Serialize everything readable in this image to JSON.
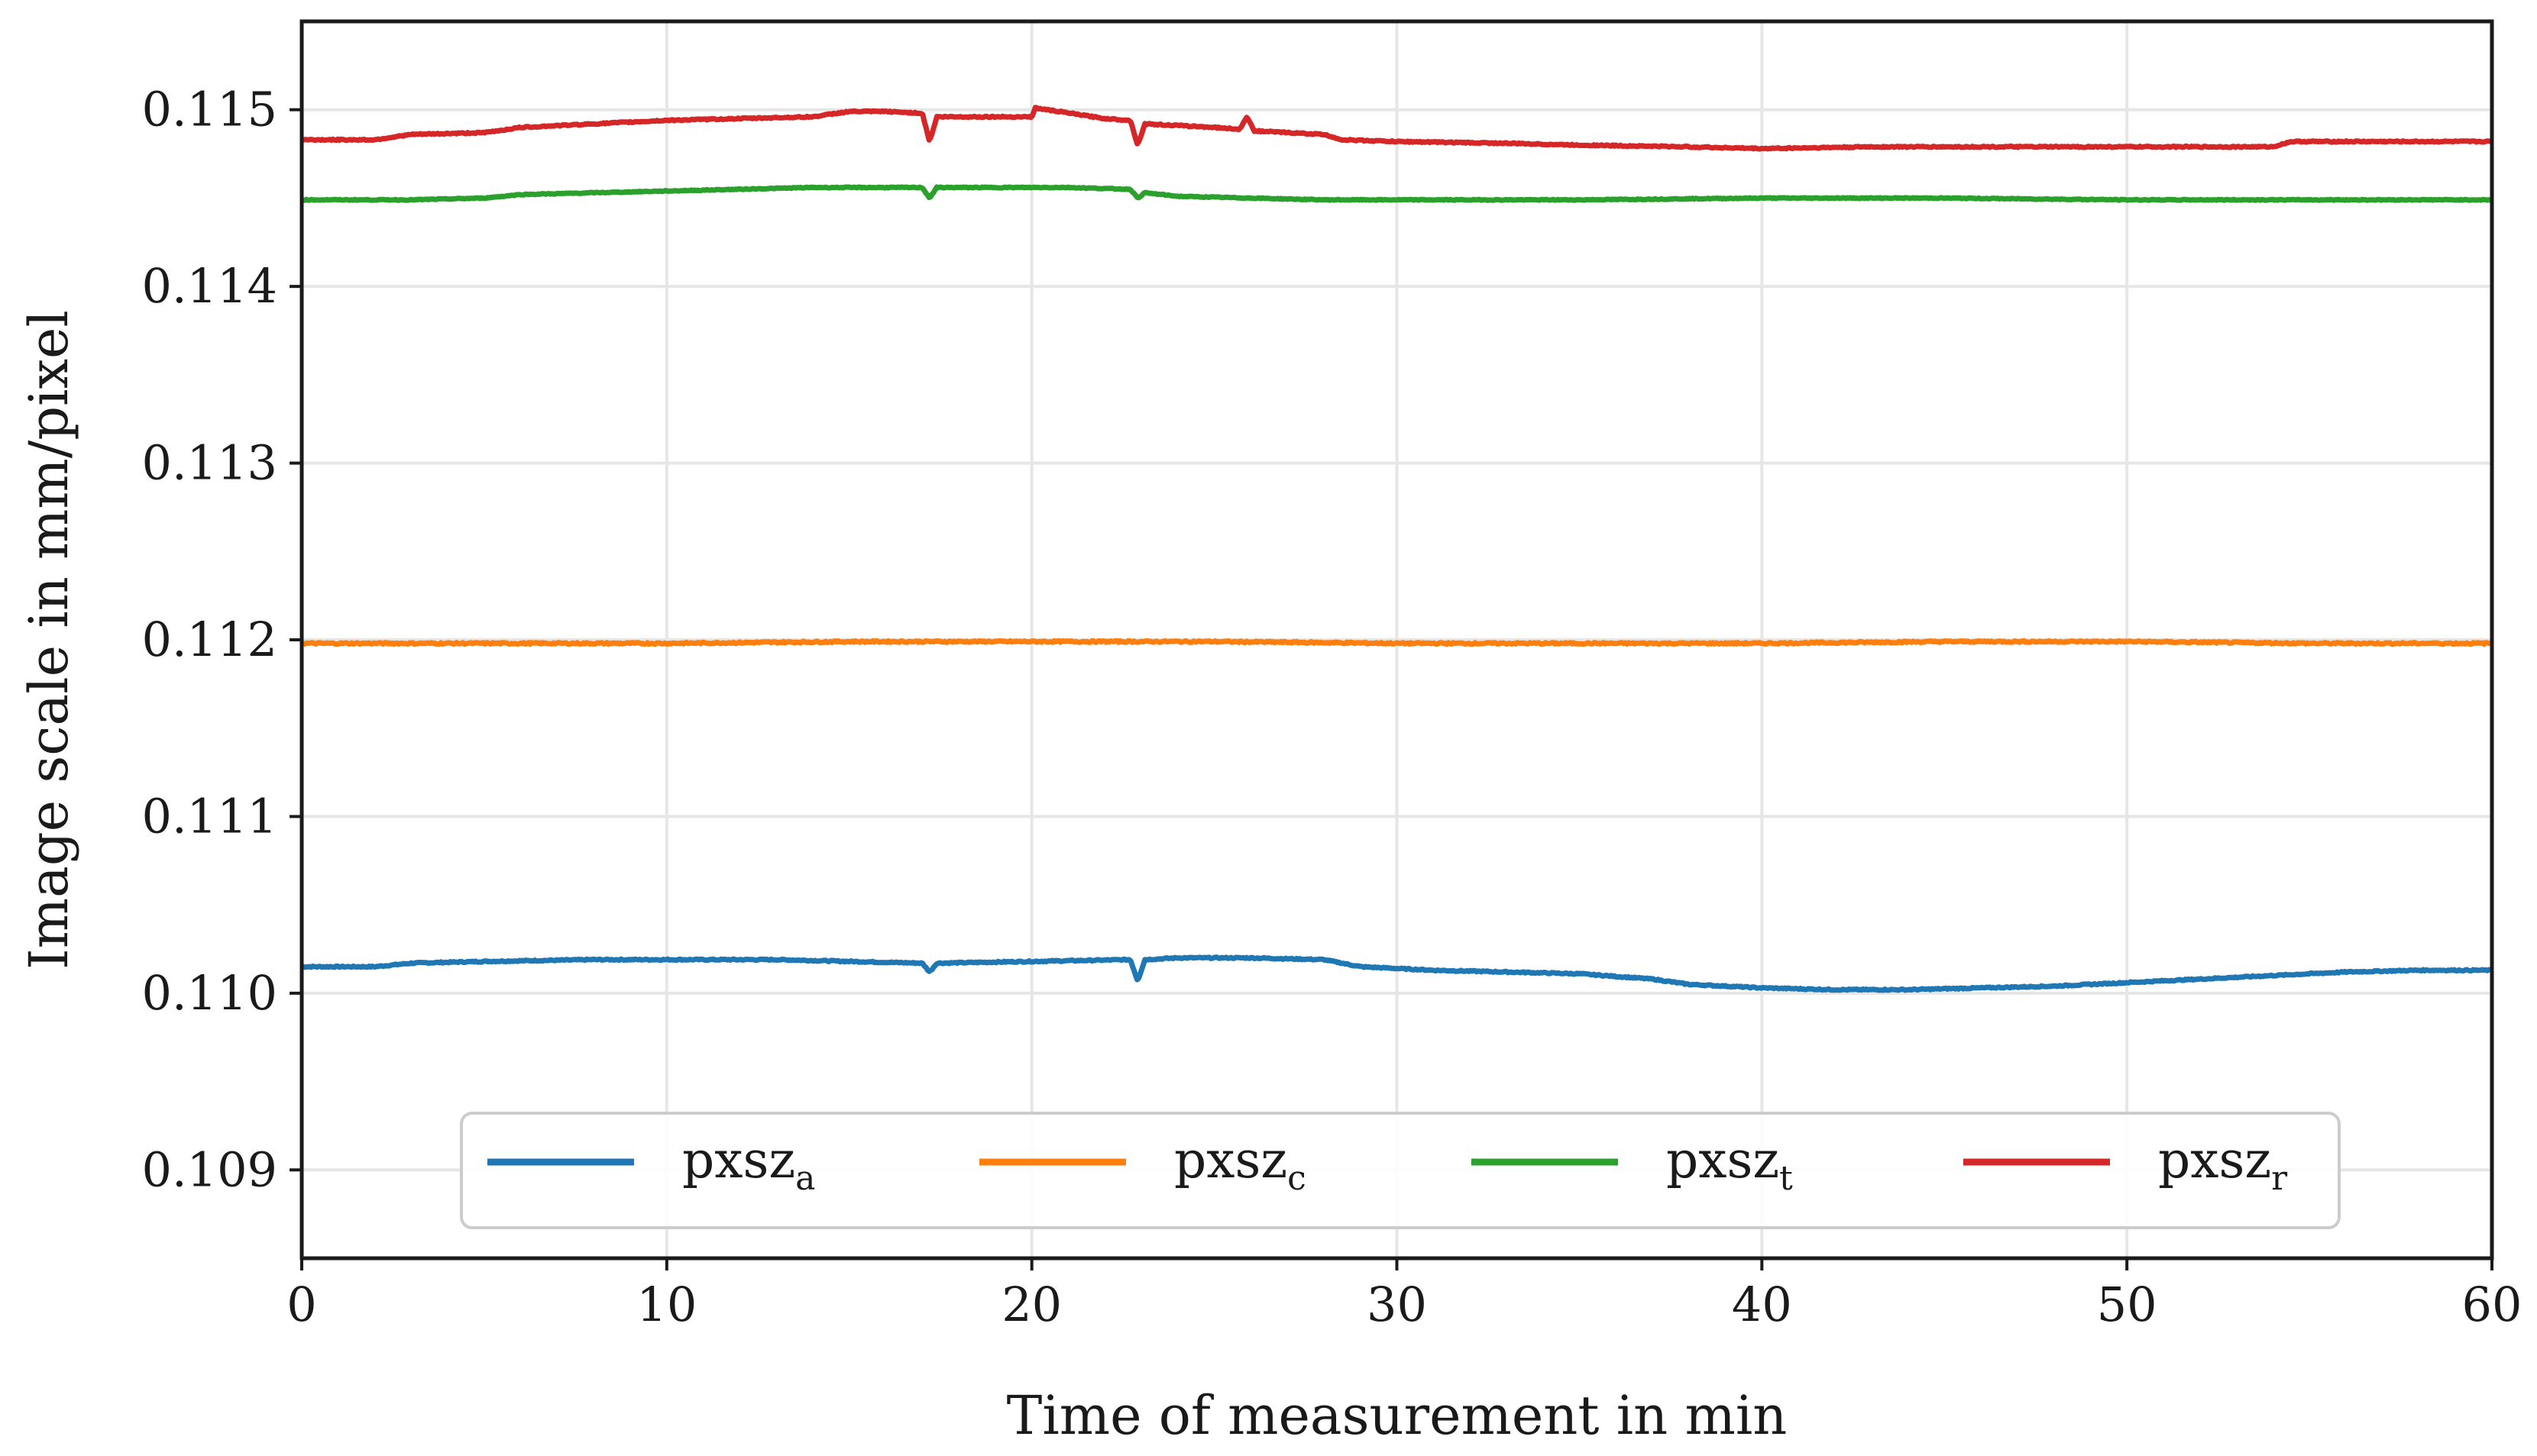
{
  "chart_data": {
    "type": "line",
    "title": "",
    "xlabel": "Time of measurement in min",
    "ylabel": "Image scale in mm/pixel",
    "xlim": [
      0,
      60
    ],
    "ylim": [
      0.1085,
      0.1155
    ],
    "xticks": [
      0,
      10,
      20,
      30,
      40,
      50,
      60
    ],
    "xtick_labels": [
      "0",
      "10",
      "20",
      "30",
      "40",
      "50",
      "60"
    ],
    "yticks": [
      0.109,
      0.11,
      0.111,
      0.112,
      0.113,
      0.114,
      0.115
    ],
    "ytick_labels": [
      "0.109",
      "0.110",
      "0.111",
      "0.112",
      "0.113",
      "0.114",
      "0.115"
    ],
    "grid": true,
    "legend_position": "bottom-center",
    "series": [
      {
        "name": "pxsz_a",
        "label_main": "pxsz",
        "label_sub": "a",
        "color": "#1f77b4",
        "x": [
          0,
          2,
          3,
          5,
          8,
          10,
          13,
          15,
          17,
          17.2,
          17.4,
          20,
          22.7,
          22.9,
          23.1,
          24,
          26,
          28,
          29,
          31,
          33,
          35,
          37,
          38,
          40,
          42,
          44,
          46,
          48,
          50,
          52,
          54,
          56,
          58,
          60
        ],
        "values": [
          0.11015,
          0.11015,
          0.11017,
          0.11018,
          0.11019,
          0.11019,
          0.11019,
          0.11018,
          0.11017,
          0.11012,
          0.11017,
          0.11018,
          0.11019,
          0.11007,
          0.11019,
          0.1102,
          0.1102,
          0.11019,
          0.11015,
          0.11013,
          0.11012,
          0.11011,
          0.11008,
          0.11005,
          0.11003,
          0.11002,
          0.11002,
          0.11003,
          0.11004,
          0.11006,
          0.11008,
          0.1101,
          0.11012,
          0.11013,
          0.11013
        ]
      },
      {
        "name": "pxsz_c",
        "label_main": "pxsz",
        "label_sub": "c",
        "color": "#ff7f0e",
        "x": [
          0,
          5,
          10,
          15,
          20,
          25,
          30,
          35,
          40,
          45,
          50,
          55,
          60
        ],
        "values": [
          0.11198,
          0.11198,
          0.11198,
          0.11199,
          0.11199,
          0.11199,
          0.11198,
          0.11198,
          0.11198,
          0.11199,
          0.11199,
          0.11198,
          0.11198
        ]
      },
      {
        "name": "pxsz_t",
        "label_main": "pxsz",
        "label_sub": "t",
        "color": "#2ca02c",
        "x": [
          0,
          3,
          5,
          6,
          8,
          10,
          12,
          14,
          16,
          17,
          17.2,
          17.4,
          19,
          21,
          22.7,
          22.9,
          23.1,
          24,
          26,
          28,
          30,
          35,
          40,
          45,
          50,
          55,
          60
        ],
        "values": [
          0.11449,
          0.11449,
          0.1145,
          0.11452,
          0.11453,
          0.11454,
          0.11455,
          0.11456,
          0.11456,
          0.11456,
          0.1145,
          0.11456,
          0.11456,
          0.11456,
          0.11455,
          0.1145,
          0.11453,
          0.11451,
          0.1145,
          0.11449,
          0.11449,
          0.11449,
          0.1145,
          0.1145,
          0.11449,
          0.11449,
          0.11449
        ]
      },
      {
        "name": "pxsz_r",
        "label_main": "pxsz",
        "label_sub": "r",
        "color": "#d62728",
        "x": [
          0,
          2,
          3,
          5,
          6,
          8,
          10,
          12,
          14,
          15,
          16,
          17,
          17.2,
          17.4,
          19,
          20,
          20.1,
          22,
          22.7,
          22.9,
          23.1,
          25,
          25.7,
          25.9,
          26.1,
          28,
          28.5,
          30,
          33,
          35,
          38,
          40,
          43,
          45,
          50,
          54,
          54.5,
          60
        ],
        "values": [
          0.11483,
          0.11483,
          0.11486,
          0.11487,
          0.1149,
          0.11492,
          0.11494,
          0.11495,
          0.11496,
          0.11499,
          0.11499,
          0.11498,
          0.11482,
          0.11496,
          0.11496,
          0.11496,
          0.11501,
          0.11495,
          0.11494,
          0.1148,
          0.11492,
          0.1149,
          0.11489,
          0.11496,
          0.11488,
          0.11486,
          0.11483,
          0.11482,
          0.11481,
          0.1148,
          0.11479,
          0.11478,
          0.11479,
          0.11479,
          0.11479,
          0.11479,
          0.11482,
          0.11482
        ]
      }
    ]
  }
}
